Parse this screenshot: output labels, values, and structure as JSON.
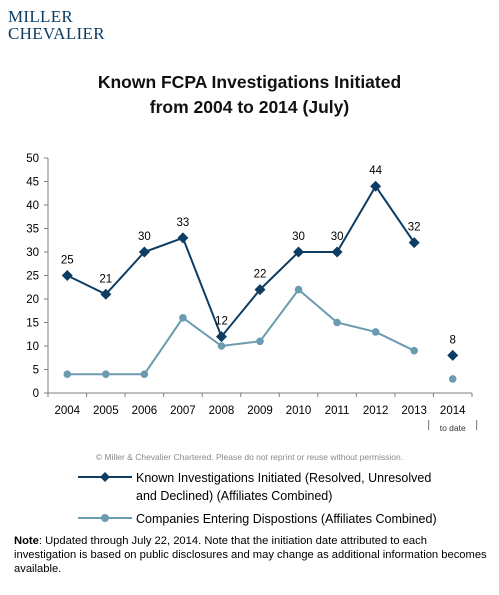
{
  "logo": {
    "line1": "MILLER",
    "line2": "CHEVALIER"
  },
  "copyright": "© Miller & Chevalier Chartered. Please do not reprint or reuse without permission.",
  "note": {
    "label": "Note",
    "text": ": Updated through July 22, 2014. Note that the  initiation date attributed to each investigation is based on public disclosures and may change as additional information becomes available."
  },
  "colors": {
    "series1": "#0d3d63",
    "series2": "#6a9bb0",
    "axis": "#7f7f7f",
    "grid": "#d9d9d9"
  },
  "chart_data": {
    "type": "line",
    "title_line1": "Known  FCPA Investigations  Initiated",
    "title_line2": "from 2004 to 2014 (July)",
    "categories": [
      "2004",
      "2005",
      "2006",
      "2007",
      "2008",
      "2009",
      "2010",
      "2011",
      "2012",
      "2013",
      "2014"
    ],
    "category_sublabels": {
      "2014": "to date"
    },
    "ylim": [
      0,
      50
    ],
    "yticks": [
      0,
      5,
      10,
      15,
      20,
      25,
      30,
      35,
      40,
      45,
      50
    ],
    "grid": false,
    "legend_position": "bottom",
    "series": [
      {
        "name": "Known Investigations Initiated (Resolved, Unresolved and Declined) (Affiliates Combined)",
        "legend_line1": "Known Investigations Initiated (Resolved, Unresolved",
        "legend_line2": "and Declined) (Affiliates Combined)",
        "values": [
          25,
          21,
          30,
          33,
          12,
          22,
          30,
          30,
          44,
          32,
          8
        ],
        "connected_through_index": 9,
        "marker": "diamond",
        "data_labels": true
      },
      {
        "name": "Companies Entering Dispostions (Affiliates Combined)",
        "legend_line1": "Companies Entering Dispostions (Affiliates Combined)",
        "values": [
          4,
          4,
          4,
          16,
          10,
          11,
          22,
          15,
          13,
          9,
          3
        ],
        "connected_through_index": 9,
        "marker": "circle",
        "data_labels": false
      }
    ]
  }
}
